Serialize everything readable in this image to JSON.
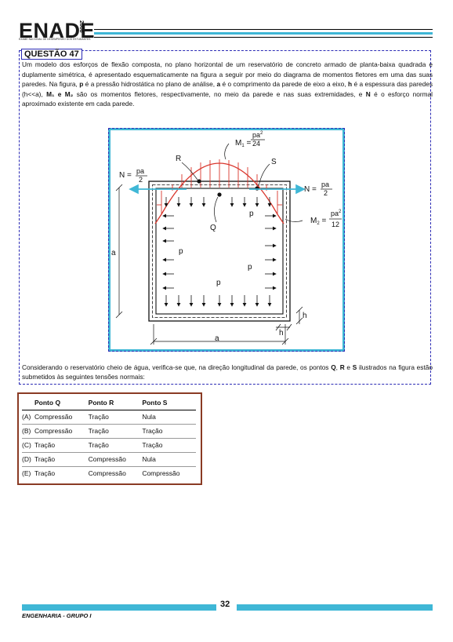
{
  "header": {
    "logo": "ENADE",
    "year": "2008",
    "tagline": "EXAME NACIONAL DE DESEMPENHO DOS ESTUDANTES"
  },
  "question": {
    "title": "QUESTÃO 47",
    "paragraph": [
      {
        "t": "Um modelo dos esforços de flexão composta, no plano horizontal de um reservatório de concreto armado de planta-baixa quadrada e duplamente simétrica, é apresentado esquematicamente na figura a seguir por meio do diagrama de momentos fletores em uma das suas paredes. Na figura, "
      },
      {
        "b": "p"
      },
      {
        "t": " é a pressão hidrostática no plano de análise, "
      },
      {
        "b": "a"
      },
      {
        "t": " é o comprimento da parede de eixo a eixo, "
      },
      {
        "b": "h"
      },
      {
        "t": " é a espessura das paredes (h<<a), "
      },
      {
        "b": "M₁ e M₂"
      },
      {
        "t": " são os momentos fletores, respectivamente, no meio da parede e nas suas extremidades, e "
      },
      {
        "b": "N"
      },
      {
        "t": " é o esforço normal aproximado existente em cada parede."
      }
    ],
    "conclusion": [
      {
        "t": "Considerando o reservatório cheio de água, verifica-se que, na direção longitudinal da parede, os pontos "
      },
      {
        "b": "Q"
      },
      {
        "t": ", "
      },
      {
        "b": "R"
      },
      {
        "t": " e "
      },
      {
        "b": "S"
      },
      {
        "t": " ilustrados na figura estão submetidos às seguintes tensões normais:"
      }
    ]
  },
  "figure": {
    "m1_label": "M",
    "m1_sub": "1",
    "m1_num": "pa",
    "m1_den": "24",
    "m2_label": "M",
    "m2_sub": "2",
    "m2_num": "pa",
    "m2_den": "12",
    "sup": "2",
    "n_label": "N =",
    "n_num": "pa",
    "n_den": "2",
    "R": "R",
    "S": "S",
    "Q": "Q",
    "p": "p",
    "a": "a",
    "h": "h"
  },
  "table": {
    "headers": [
      "",
      "Ponto Q",
      "Ponto R",
      "Ponto S"
    ],
    "rows": [
      [
        "(A)",
        "Compressão",
        "Tração",
        "Nula"
      ],
      [
        "(B)",
        "Compressão",
        "Tração",
        "Tração"
      ],
      [
        "(C)",
        "Tração",
        "Tração",
        "Tração"
      ],
      [
        "(D)",
        "Tração",
        "Compressão",
        "Nula"
      ],
      [
        "(E)",
        "Tração",
        "Compressão",
        "Compressão"
      ]
    ]
  },
  "footer": {
    "page": "32",
    "label": "ENGENHARIA - GRUPO I"
  },
  "colors": {
    "accent": "#3fb7d6",
    "moment": "#d9352b",
    "frame": "#2b2bb5",
    "table_border": "#8a3b24"
  }
}
